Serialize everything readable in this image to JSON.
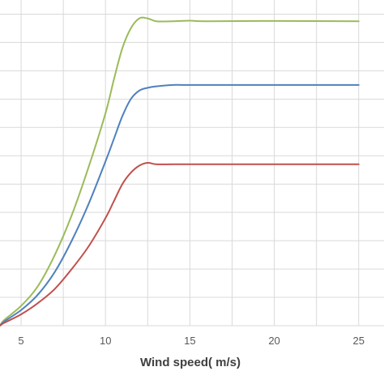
{
  "chart_data": {
    "type": "line",
    "title": "",
    "xlabel": "Wind speed( m/s)",
    "ylabel": "",
    "xlim": [
      3.75,
      26.5
    ],
    "ylim": [
      0,
      1.15
    ],
    "x_ticks": [
      5,
      10,
      15,
      20,
      25
    ],
    "x_tick_labels": [
      "5",
      "10",
      "15",
      "20",
      "25"
    ],
    "y_grid": [
      0.0,
      0.1,
      0.2,
      0.3,
      0.4,
      0.5,
      0.6,
      0.7,
      0.8,
      0.9,
      1.0,
      1.1
    ],
    "grid": true,
    "legend": "none",
    "series": [
      {
        "color": "#9bbb59",
        "points": [
          [
            3.75,
            0.0
          ],
          [
            4,
            0.02
          ],
          [
            5,
            0.07
          ],
          [
            6,
            0.14
          ],
          [
            7,
            0.25
          ],
          [
            8,
            0.39
          ],
          [
            9,
            0.56
          ],
          [
            10,
            0.75
          ],
          [
            10.5,
            0.87
          ],
          [
            11,
            0.98
          ],
          [
            11.5,
            1.05
          ],
          [
            12,
            1.085
          ],
          [
            12.5,
            1.085
          ],
          [
            13,
            1.075
          ],
          [
            14,
            1.075
          ],
          [
            15,
            1.077
          ],
          [
            16,
            1.075
          ],
          [
            20,
            1.076
          ],
          [
            25,
            1.075
          ]
        ]
      },
      {
        "color": "#4f81bd",
        "points": [
          [
            3.75,
            0.0
          ],
          [
            4,
            0.015
          ],
          [
            5,
            0.055
          ],
          [
            6,
            0.11
          ],
          [
            7,
            0.19
          ],
          [
            8,
            0.3
          ],
          [
            9,
            0.43
          ],
          [
            10,
            0.58
          ],
          [
            10.5,
            0.66
          ],
          [
            11,
            0.74
          ],
          [
            11.5,
            0.8
          ],
          [
            12,
            0.83
          ],
          [
            12.5,
            0.84
          ],
          [
            13,
            0.845
          ],
          [
            14,
            0.85
          ],
          [
            15,
            0.85
          ],
          [
            20,
            0.85
          ],
          [
            25,
            0.85
          ]
        ]
      },
      {
        "color": "#c0504d",
        "points": [
          [
            3.75,
            0.0
          ],
          [
            4,
            0.01
          ],
          [
            5,
            0.04
          ],
          [
            6,
            0.08
          ],
          [
            7,
            0.13
          ],
          [
            8,
            0.2
          ],
          [
            9,
            0.28
          ],
          [
            10,
            0.38
          ],
          [
            10.5,
            0.44
          ],
          [
            11,
            0.5
          ],
          [
            11.5,
            0.54
          ],
          [
            12,
            0.565
          ],
          [
            12.5,
            0.575
          ],
          [
            13,
            0.57
          ],
          [
            14,
            0.57
          ],
          [
            15,
            0.57
          ],
          [
            20,
            0.57
          ],
          [
            25,
            0.57
          ]
        ]
      }
    ]
  }
}
